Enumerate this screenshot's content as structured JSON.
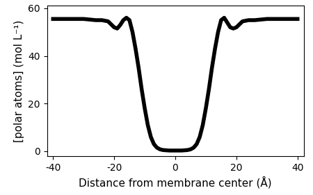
{
  "chart_data": {
    "type": "line",
    "xlabel": "Distance from membrane center (Å)",
    "ylabel": "[polar atoms] (mol L⁻¹)",
    "x": [
      -40,
      -35,
      -30,
      -26,
      -24,
      -22,
      -20,
      -19,
      -18,
      -17,
      -16,
      -15,
      -14,
      -13,
      -12,
      -11,
      -10,
      -9,
      -8,
      -7,
      -6,
      -5,
      -4,
      -2,
      0,
      2,
      4,
      5,
      6,
      7,
      8,
      9,
      10,
      11,
      12,
      13,
      14,
      15,
      16,
      17,
      18,
      19,
      20,
      22,
      24,
      26,
      30,
      35,
      40
    ],
    "series": [
      {
        "color": "#000000",
        "line_style": "solid",
        "values": [
          55.5,
          55.5,
          55.5,
          55,
          55,
          54.5,
          52,
          51.5,
          53,
          55,
          56,
          55,
          50,
          43,
          35,
          26,
          18,
          11,
          6,
          3,
          1.5,
          0.8,
          0.5,
          0.3,
          0.3,
          0.3,
          0.5,
          0.8,
          1.5,
          3,
          6,
          11,
          18,
          26,
          35,
          43,
          50,
          55,
          56,
          54,
          52,
          51.5,
          52,
          54.5,
          55,
          55,
          55.5,
          55.5,
          55.5
        ]
      }
    ],
    "xlim": [
      -42,
      42
    ],
    "ylim": [
      -2,
      61
    ],
    "xticks": [
      -40,
      -20,
      0,
      20,
      40
    ],
    "yticks": [
      0,
      20,
      40,
      60
    ],
    "grid": false
  }
}
